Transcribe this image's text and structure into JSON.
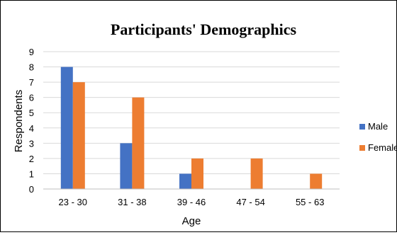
{
  "chart_data": {
    "type": "bar",
    "title": "Participants' Demographics",
    "xlabel": "Age",
    "ylabel": "Respondents",
    "categories": [
      "23 - 30",
      "31 - 38",
      "39 - 46",
      "47 - 54",
      "55 - 63"
    ],
    "series": [
      {
        "name": "Male",
        "values": [
          8,
          3,
          1,
          0,
          0
        ],
        "color": "#4472C4"
      },
      {
        "name": "Female",
        "values": [
          7,
          6,
          2,
          2,
          1
        ],
        "color": "#ED7D31"
      }
    ],
    "ylim": [
      0,
      9
    ],
    "yticks": [
      "0",
      "1",
      "2",
      "3",
      "4",
      "5",
      "6",
      "7",
      "8",
      "9"
    ],
    "grid": true,
    "legend_position": "right"
  }
}
